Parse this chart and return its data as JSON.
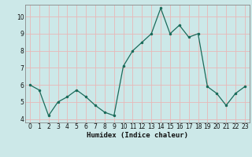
{
  "x": [
    0,
    1,
    2,
    3,
    4,
    5,
    6,
    7,
    8,
    9,
    10,
    11,
    12,
    13,
    14,
    15,
    16,
    17,
    18,
    19,
    20,
    21,
    22,
    23
  ],
  "y": [
    6.0,
    5.7,
    4.2,
    5.0,
    5.3,
    5.7,
    5.3,
    4.8,
    4.4,
    4.2,
    7.1,
    8.0,
    8.5,
    9.0,
    10.5,
    9.0,
    9.5,
    8.8,
    9.0,
    5.9,
    5.5,
    4.8,
    5.5,
    5.9
  ],
  "xlabel": "Humidex (Indice chaleur)",
  "bg_color": "#cce8e8",
  "grid_color": "#e8b8b8",
  "line_color": "#1a6b5a",
  "marker_color": "#1a6b5a",
  "ylim_min": 3.8,
  "ylim_max": 10.7,
  "xlim_min": -0.5,
  "xlim_max": 23.5,
  "yticks": [
    4,
    5,
    6,
    7,
    8,
    9,
    10
  ],
  "xticks": [
    0,
    1,
    2,
    3,
    4,
    5,
    6,
    7,
    8,
    9,
    10,
    11,
    12,
    13,
    14,
    15,
    16,
    17,
    18,
    19,
    20,
    21,
    22,
    23
  ],
  "tick_fontsize": 5.5,
  "xlabel_fontsize": 6.5,
  "xlabel_fontfamily": "monospace"
}
